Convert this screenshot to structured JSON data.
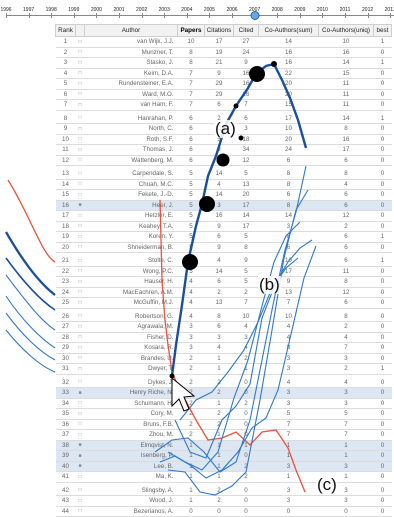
{
  "timeline": {
    "years": [
      "1996",
      "1997",
      "1998",
      "1999",
      "2000",
      "2001",
      "2002",
      "2003",
      "2004",
      "2005",
      "2006",
      "2007",
      "2008",
      "2009",
      "2010",
      "2011",
      "2012",
      "2013"
    ],
    "selected_year": "2007"
  },
  "table": {
    "columns": [
      "Rank",
      "",
      "Author",
      "Papers",
      "Citations",
      "Cited",
      "Co-Authors(sum)",
      "Co-Authors(uniq)",
      "best"
    ],
    "sort_column": "Papers",
    "rows": [
      {
        "rank": "1",
        "author": "van Wijk, J.J.",
        "p": "10",
        "c": "17",
        "ci": "27",
        "cs": "14",
        "cu": "10",
        "b": "1",
        "hl": false
      },
      {
        "rank": "2",
        "author": "Munzner, T.",
        "p": "8",
        "c": "19",
        "ci": "24",
        "cs": "16",
        "cu": "16",
        "b": "0",
        "hl": false
      },
      {
        "rank": "3",
        "author": "Stasko, J.",
        "p": "8",
        "c": "21",
        "ci": "9",
        "cs": "16",
        "cu": "14",
        "b": "1",
        "hl": false
      },
      {
        "rank": "4",
        "author": "Keim, D.A.",
        "p": "7",
        "c": "9",
        "ci": "16",
        "cs": "22",
        "cu": "15",
        "b": "0",
        "hl": false
      },
      {
        "rank": "5",
        "author": "Rundensteiner, E.A.",
        "p": "7",
        "c": "29",
        "ci": "16",
        "cs": "20",
        "cu": "11",
        "b": "0",
        "hl": false
      },
      {
        "rank": "6",
        "author": "Ward, M.O.",
        "p": "7",
        "c": "29",
        "ci": "16",
        "cs": "20",
        "cu": "11",
        "b": "0",
        "hl": false
      },
      {
        "rank": "7",
        "author": "van Ham, F.",
        "p": "7",
        "c": "6",
        "ci": "7",
        "cs": "15",
        "cu": "11",
        "b": "0",
        "hl": false
      },
      {
        "gap": true
      },
      {
        "rank": "8",
        "author": "Hanrahan, P.",
        "p": "6",
        "c": "2",
        "ci": "6",
        "cs": "17",
        "cu": "14",
        "b": "1",
        "hl": false
      },
      {
        "rank": "9",
        "author": "North, C.",
        "p": "6",
        "c": "11",
        "ci": "3",
        "cs": "10",
        "cu": "8",
        "b": "0",
        "hl": false
      },
      {
        "rank": "10",
        "author": "Roth, S.F.",
        "p": "6",
        "c": "5",
        "ci": "18",
        "cs": "20",
        "cu": "16",
        "b": "0",
        "hl": false
      },
      {
        "rank": "11",
        "author": "Thomas, J.",
        "p": "6",
        "c": "9",
        "ci": "34",
        "cs": "24",
        "cu": "17",
        "b": "0",
        "hl": false
      },
      {
        "rank": "12",
        "author": "Wattenberg, M.",
        "p": "6",
        "c": "7",
        "ci": "12",
        "cs": "6",
        "cu": "6",
        "b": "0",
        "hl": false
      },
      {
        "gap": true
      },
      {
        "rank": "13",
        "author": "Carpendale, S.",
        "p": "5",
        "c": "14",
        "ci": "5",
        "cs": "8",
        "cu": "8",
        "b": "0",
        "hl": false
      },
      {
        "rank": "14",
        "author": "Chuah, M.C.",
        "p": "5",
        "c": "4",
        "ci": "13",
        "cs": "8",
        "cu": "4",
        "b": "0",
        "hl": false
      },
      {
        "rank": "15",
        "author": "Fekete, J.-D.",
        "p": "5",
        "c": "14",
        "ci": "20",
        "cs": "6",
        "cu": "6",
        "b": "0",
        "hl": false
      },
      {
        "rank": "16",
        "author": "Heer, J.",
        "p": "5",
        "c": "3",
        "ci": "17",
        "cs": "8",
        "cu": "6",
        "b": "0",
        "hl": true
      },
      {
        "rank": "17",
        "author": "Hetzler, E.",
        "p": "5",
        "c": "16",
        "ci": "14",
        "cs": "14",
        "cu": "12",
        "b": "0",
        "hl": false
      },
      {
        "rank": "18",
        "author": "Keahey, T.A.",
        "p": "5",
        "c": "9",
        "ci": "17",
        "cs": "3",
        "cu": "2",
        "b": "0",
        "hl": false
      },
      {
        "rank": "19",
        "author": "Koren, Y.",
        "p": "5",
        "c": "6",
        "ci": "5",
        "cs": "8",
        "cu": "6",
        "b": "1",
        "hl": false
      },
      {
        "rank": "20",
        "author": "Shneiderman, B.",
        "p": "5",
        "c": "9",
        "ci": "8",
        "cs": "6",
        "cu": "6",
        "b": "0",
        "hl": false
      },
      {
        "gap": true
      },
      {
        "rank": "21",
        "author": "Stolte, C.",
        "p": "5",
        "c": "4",
        "ci": "9",
        "cs": "10",
        "cu": "6",
        "b": "1",
        "hl": false
      },
      {
        "rank": "22",
        "author": "Wong, P.C.",
        "p": "5",
        "c": "14",
        "ci": "5",
        "cs": "17",
        "cu": "11",
        "b": "0",
        "hl": false
      },
      {
        "rank": "23",
        "author": "Hauser, H.",
        "p": "4",
        "c": "6",
        "ci": "5",
        "cs": "9",
        "cu": "8",
        "b": "0",
        "hl": false
      },
      {
        "rank": "24",
        "author": "MacEachren, A.M.",
        "p": "4",
        "c": "2",
        "ci": "2",
        "cs": "13",
        "cu": "12",
        "b": "0",
        "hl": false
      },
      {
        "rank": "25",
        "author": "McGuffin, M.J.",
        "p": "4",
        "c": "13",
        "ci": "7",
        "cs": "7",
        "cu": "6",
        "b": "0",
        "hl": false
      },
      {
        "gap": true
      },
      {
        "rank": "26",
        "author": "Robertson, G.",
        "p": "4",
        "c": "8",
        "ci": "10",
        "cs": "10",
        "cu": "8",
        "b": "0",
        "hl": false
      },
      {
        "rank": "27",
        "author": "Agrawala, M.",
        "p": "3",
        "c": "6",
        "ci": "4",
        "cs": "4",
        "cu": "2",
        "b": "0",
        "hl": false
      },
      {
        "rank": "28",
        "author": "Fisher, D.",
        "p": "3",
        "c": "3",
        "ci": "3",
        "cs": "4",
        "cu": "4",
        "b": "0",
        "hl": false
      },
      {
        "rank": "29",
        "author": "Kosara, R.",
        "p": "3",
        "c": "4",
        "ci": "4",
        "cs": "8",
        "cu": "7",
        "b": "0",
        "hl": false
      },
      {
        "rank": "30",
        "author": "Brandes, U.",
        "p": "2",
        "c": "1",
        "ci": "2",
        "cs": "3",
        "cu": "3",
        "b": "0",
        "hl": false
      },
      {
        "rank": "31",
        "author": "Dwyer, T.",
        "p": "2",
        "c": "1",
        "ci": "1",
        "cs": "3",
        "cu": "2",
        "b": "1",
        "hl": false
      },
      {
        "gap": true
      },
      {
        "rank": "32",
        "author": "Dykes, J.",
        "p": "2",
        "c": "2",
        "ci": "0",
        "cs": "4",
        "cu": "4",
        "b": "0",
        "hl": false
      },
      {
        "rank": "33",
        "author": "Henry Riche, N.",
        "p": "2",
        "c": "2",
        "ci": "0",
        "cs": "3",
        "cu": "3",
        "b": "0",
        "hl": true
      },
      {
        "rank": "34",
        "author": "Schumann, H.",
        "p": "2",
        "c": "1",
        "ci": "2",
        "cs": "3",
        "cu": "3",
        "b": "0",
        "hl": false
      },
      {
        "rank": "35",
        "author": "Cory, M.",
        "p": "2",
        "c": "2",
        "ci": "0",
        "cs": "5",
        "cu": "5",
        "b": "0",
        "hl": false
      },
      {
        "rank": "36",
        "author": "Bruns, F.B.",
        "p": "2",
        "c": "2",
        "ci": "0",
        "cs": "7",
        "cu": "7",
        "b": "0",
        "hl": false
      },
      {
        "rank": "37",
        "author": "Zhou, M.",
        "p": "2",
        "c": "1",
        "ci": "0",
        "cs": "7",
        "cu": "7",
        "b": "0",
        "hl": false
      },
      {
        "rank": "38",
        "author": "Elmqvist, N.",
        "p": "1",
        "c": "1",
        "ci": "1",
        "cs": "1",
        "cu": "1",
        "b": "0",
        "hl": true
      },
      {
        "rank": "39",
        "author": "Isenberg, P.",
        "p": "1",
        "c": "1",
        "ci": "0",
        "cs": "1",
        "cu": "1",
        "b": "0",
        "hl": true
      },
      {
        "rank": "40",
        "author": "Lee, B.",
        "p": "1",
        "c": "1",
        "ci": "2",
        "cs": "3",
        "cu": "3",
        "b": "0",
        "hl": true
      },
      {
        "rank": "41",
        "author": "Ma, K.",
        "p": "1",
        "c": "1",
        "ci": "2",
        "cs": "1",
        "cu": "1",
        "b": "0",
        "hl": false
      },
      {
        "gap": true
      },
      {
        "rank": "42",
        "author": "Slingsby, A.",
        "p": "1",
        "c": "2",
        "ci": "0",
        "cs": "3",
        "cu": "3",
        "b": "0",
        "hl": false
      },
      {
        "rank": "43",
        "author": "Wood, J.",
        "p": "1",
        "c": "2",
        "ci": "0",
        "cs": "3",
        "cu": "3",
        "b": "0",
        "hl": false
      },
      {
        "rank": "44",
        "author": "Bezerianos, A.",
        "p": "0",
        "c": "0",
        "ci": "0",
        "cs": "0",
        "cu": "0",
        "b": "0",
        "hl": false
      }
    ]
  },
  "callouts": {
    "a": "(a)",
    "b": "(b)",
    "c": "(c)"
  },
  "colors": {
    "blue_line": "#1a4f9c",
    "light_blue": "#2f78c8",
    "red_line": "#e8533a",
    "cursor": "#ffffff"
  },
  "icons": {
    "row_checkbox": "checkbox-icon",
    "cursor": "arrow-cursor-icon",
    "year_slider": "slider-thumb-icon"
  }
}
